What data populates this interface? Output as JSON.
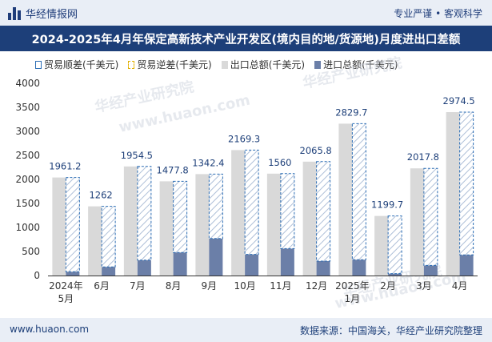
{
  "header": {
    "brand": "华经情报网",
    "slogan": "专业严谨 • 客观科学",
    "title": "2024-2025年4月年保定高新技术产业开发区(境内目的地/货源地)月度进出口差额"
  },
  "colors": {
    "export": "#d9d9d9",
    "import": "#6b7fa8",
    "surplus_border": "#2d6eb5",
    "label": "#1d3f79"
  },
  "watermarks": [
    "华经产业研究院",
    "www.huaon.com"
  ],
  "footer": {
    "site": "www.huaon.com",
    "source": "数据来源：中国海关，华经产业研究院整理"
  },
  "chart_data": {
    "type": "bar",
    "title": "2024-2025年4月年保定高新技术产业开发区(境内目的地/货源地)月度进出口差额",
    "legend": [
      "贸易顺差(千美元)",
      "贸易逆差(千美元)",
      "出口总额(千美元)",
      "进口总额(千美元)"
    ],
    "legend_position": "top",
    "categories": [
      [
        "2024年",
        "5月"
      ],
      [
        "6月"
      ],
      [
        "7月"
      ],
      [
        "8月"
      ],
      [
        "9月"
      ],
      [
        "10月"
      ],
      [
        "11月"
      ],
      [
        "12月"
      ],
      [
        "2025年",
        "1月"
      ],
      [
        "2月"
      ],
      [
        "3月"
      ],
      [
        "4月"
      ]
    ],
    "ylim": [
      0,
      4000
    ],
    "yticks": [
      0,
      500,
      1000,
      1500,
      2000,
      2500,
      3000,
      3500,
      4000
    ],
    "series": [
      {
        "name": "出口总额(千美元)",
        "values": [
          2040,
          1440,
          2270,
          1960,
          2110,
          2610,
          2120,
          2370,
          3160,
          1240,
          2230,
          3400
        ]
      },
      {
        "name": "进口总额(千美元)",
        "values": [
          80,
          180,
          320,
          480,
          770,
          440,
          560,
          300,
          330,
          40,
          210,
          430
        ]
      },
      {
        "name": "贸易顺差(千美元)",
        "values": [
          1961.2,
          1262,
          1954.5,
          1477.8,
          1342.4,
          2169.3,
          1560,
          2065.8,
          2829.7,
          1199.7,
          2017.8,
          2974.5
        ]
      }
    ],
    "data_labels": [
      "1961.2",
      "1262",
      "1954.5",
      "1477.8",
      "1342.4",
      "2169.3",
      "1560",
      "2065.8",
      "2829.7",
      "1199.7",
      "2017.8",
      "2974.5"
    ],
    "grid": false
  }
}
